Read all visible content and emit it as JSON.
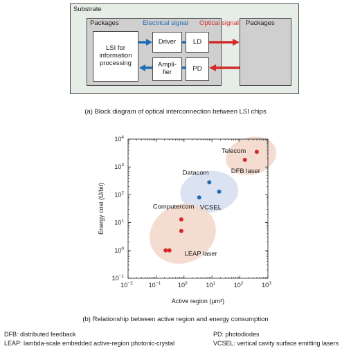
{
  "diagram_a": {
    "substrate_label": "Substrate",
    "packages_left_label": "Packages",
    "packages_right_label": "Packages",
    "electrical_signal_label": "Electrical signal",
    "optical_signal_label": "Optical signal",
    "lsi_label": "LSI for\ninformation\nprocessing",
    "driver_label": "Driver",
    "amplifier_label": "Ampli-\nfier",
    "ld_label": "LD",
    "pd_label": "PD",
    "caption": "(a) Block diagram of optical interconnection between LSI chips",
    "colors": {
      "electrical": "#1f6db5",
      "optical": "#d42a2a",
      "substrate": "#e6ece6",
      "package": "#cfcfcf"
    }
  },
  "diagram_b": {
    "caption": "(b) Relationship between active region and energy consumption"
  },
  "chart_data": {
    "type": "scatter",
    "xlabel": "Active region (µm²)",
    "ylabel": "Energy cost (fJ/bit)",
    "x_scale": "log",
    "y_scale": "log",
    "xlim": [
      0.01,
      1000
    ],
    "ylim": [
      0.1,
      10000
    ],
    "x_tick_exponents": [
      -2,
      -1,
      0,
      1,
      2,
      3
    ],
    "y_tick_exponents": [
      -1,
      0,
      1,
      2,
      3,
      4
    ],
    "tick_base": "10",
    "grid": false,
    "series": [
      {
        "name": "Telecom",
        "color": "#d42a2a",
        "cluster_color": "#f2d6c8",
        "label_note": "DFB laser",
        "points": [
          {
            "x": 400,
            "y": 3500
          },
          {
            "x": 150,
            "y": 1800
          }
        ]
      },
      {
        "name": "Datacom",
        "color": "#1f6db5",
        "cluster_color": "#d5ddf0",
        "label_note": "VCSEL",
        "points": [
          {
            "x": 8,
            "y": 280
          },
          {
            "x": 18,
            "y": 130
          },
          {
            "x": 3.5,
            "y": 80
          }
        ]
      },
      {
        "name": "Computercom",
        "color": "#d42a2a",
        "cluster_color": "#f2d6c8",
        "label_note": "LEAP laser",
        "points": [
          {
            "x": 0.8,
            "y": 13
          },
          {
            "x": 0.8,
            "y": 5
          },
          {
            "x": 0.3,
            "y": 1
          },
          {
            "x": 0.22,
            "y": 1
          }
        ]
      }
    ]
  },
  "footnotes": {
    "dfb": "DFB: distributed feedback",
    "leap": "LEAP: lambda-scale embedded active-region photonic-crystal",
    "pd": "PD: photodiodes",
    "vcsel": "VCSEL: vertical cavity surface emitting lasers"
  }
}
